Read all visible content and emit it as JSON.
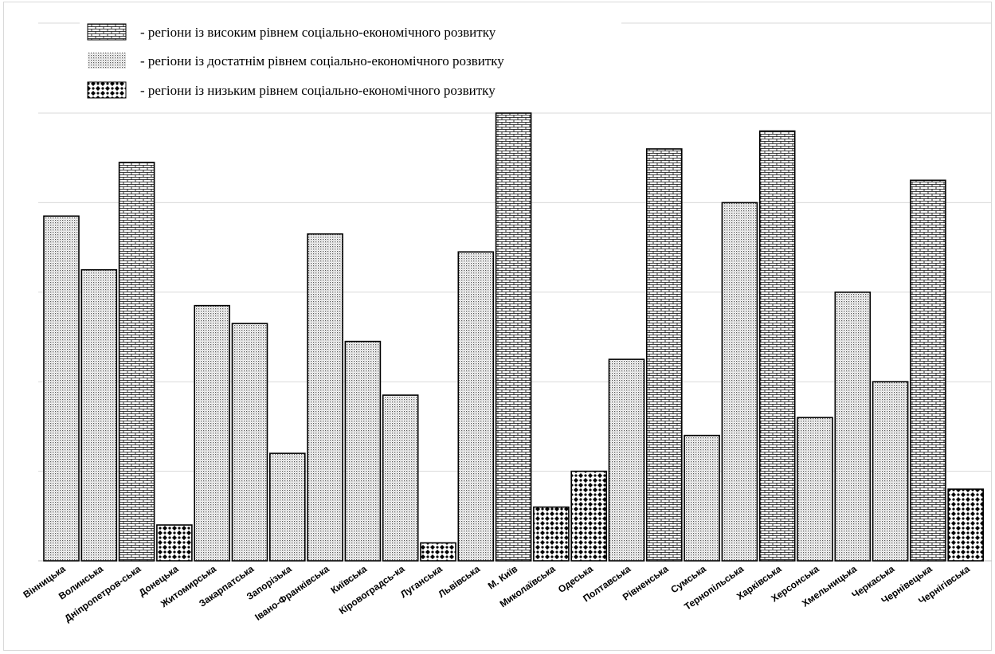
{
  "chart_data": {
    "type": "bar",
    "title": "",
    "xlabel": "",
    "ylabel": "",
    "ylim": [
      0,
      100
    ],
    "grid": true,
    "legend_position": "top",
    "colors": {
      "bar_fill": "#ffffff",
      "bar_stroke": "#000000",
      "grid": "#d9d9d9"
    },
    "legend": [
      {
        "key": "high",
        "pattern": "brick",
        "label": "- регіони із високим рівнем соціально-економічного розвитку"
      },
      {
        "key": "medium",
        "pattern": "dots",
        "label": "- регіони із достатнім рівнем соціально-економічного розвитку"
      },
      {
        "key": "low",
        "pattern": "checker",
        "label": "- регіони із низьким рівнем соціально-економічного розвитку"
      }
    ],
    "categories": [
      "Вінницька",
      "Волинська",
      "Дніпропетров-ська",
      "Донецька",
      "Житомирська",
      "Закарпатська",
      "Запорізька",
      "Івано-Франківська",
      "Київська",
      "Кіровоградсь-ка",
      "Луганська",
      "Львівська",
      "М. Київ",
      "Миколаївська",
      "Одеська",
      "Полтавська",
      "Рівненська",
      "Сумська",
      "Тернопільська",
      "Харківська",
      "Херсонська",
      "Хмельницька",
      "Черкаська",
      "Чернівецька",
      "Чернігівська"
    ],
    "values": [
      77,
      65,
      89,
      8,
      57,
      53,
      24,
      73,
      49,
      37,
      4,
      69,
      100,
      12,
      20,
      45,
      92,
      28,
      80,
      96,
      32,
      60,
      40,
      85,
      16
    ],
    "groups": [
      "medium",
      "medium",
      "high",
      "low",
      "medium",
      "medium",
      "medium",
      "medium",
      "medium",
      "medium",
      "low",
      "medium",
      "high",
      "low",
      "low",
      "medium",
      "high",
      "medium",
      "medium",
      "high",
      "medium",
      "medium",
      "medium",
      "high",
      "low"
    ]
  }
}
